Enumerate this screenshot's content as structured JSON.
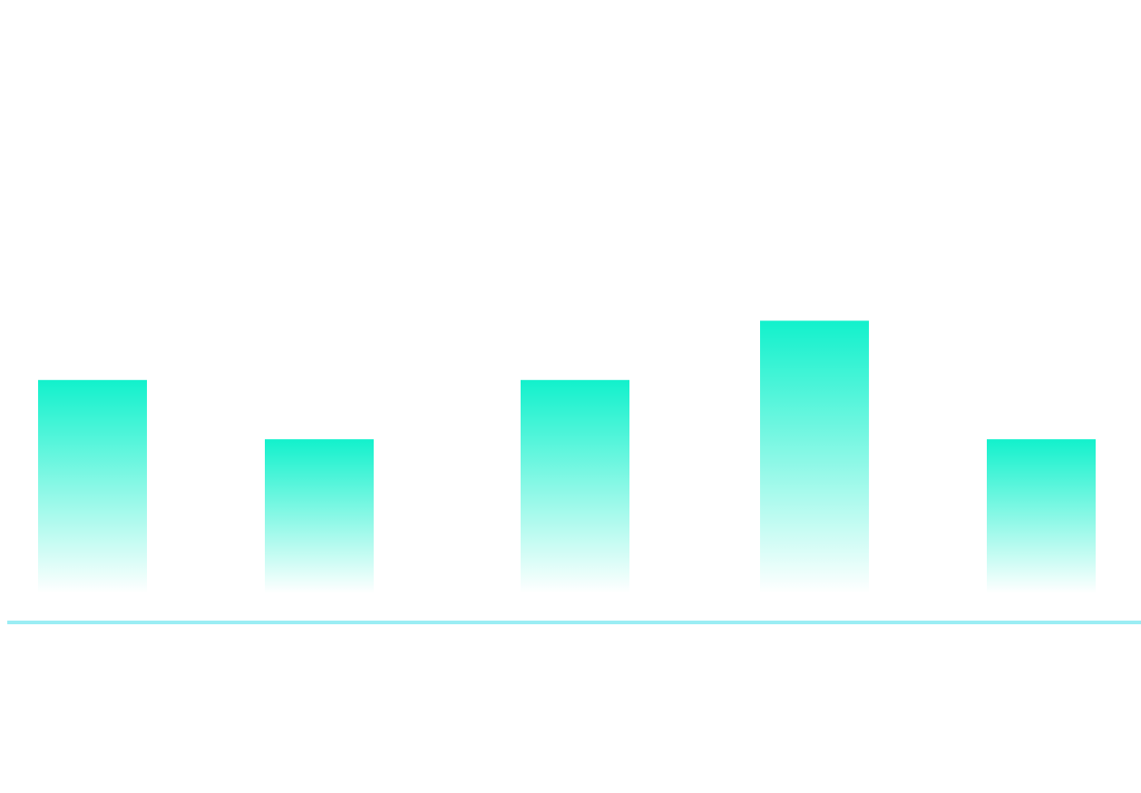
{
  "chart_data": {
    "type": "bar",
    "categories": [
      "",
      "",
      "",
      "",
      ""
    ],
    "values": [
      3.6,
      2.6,
      3.6,
      4.6,
      2.6
    ],
    "ylim": [
      0,
      9
    ],
    "grid": false,
    "legend": "none",
    "colors": {
      "bar_top": "#12f1cc",
      "bar_bottom": "#ffffff",
      "axis": "#9bedf4"
    }
  }
}
